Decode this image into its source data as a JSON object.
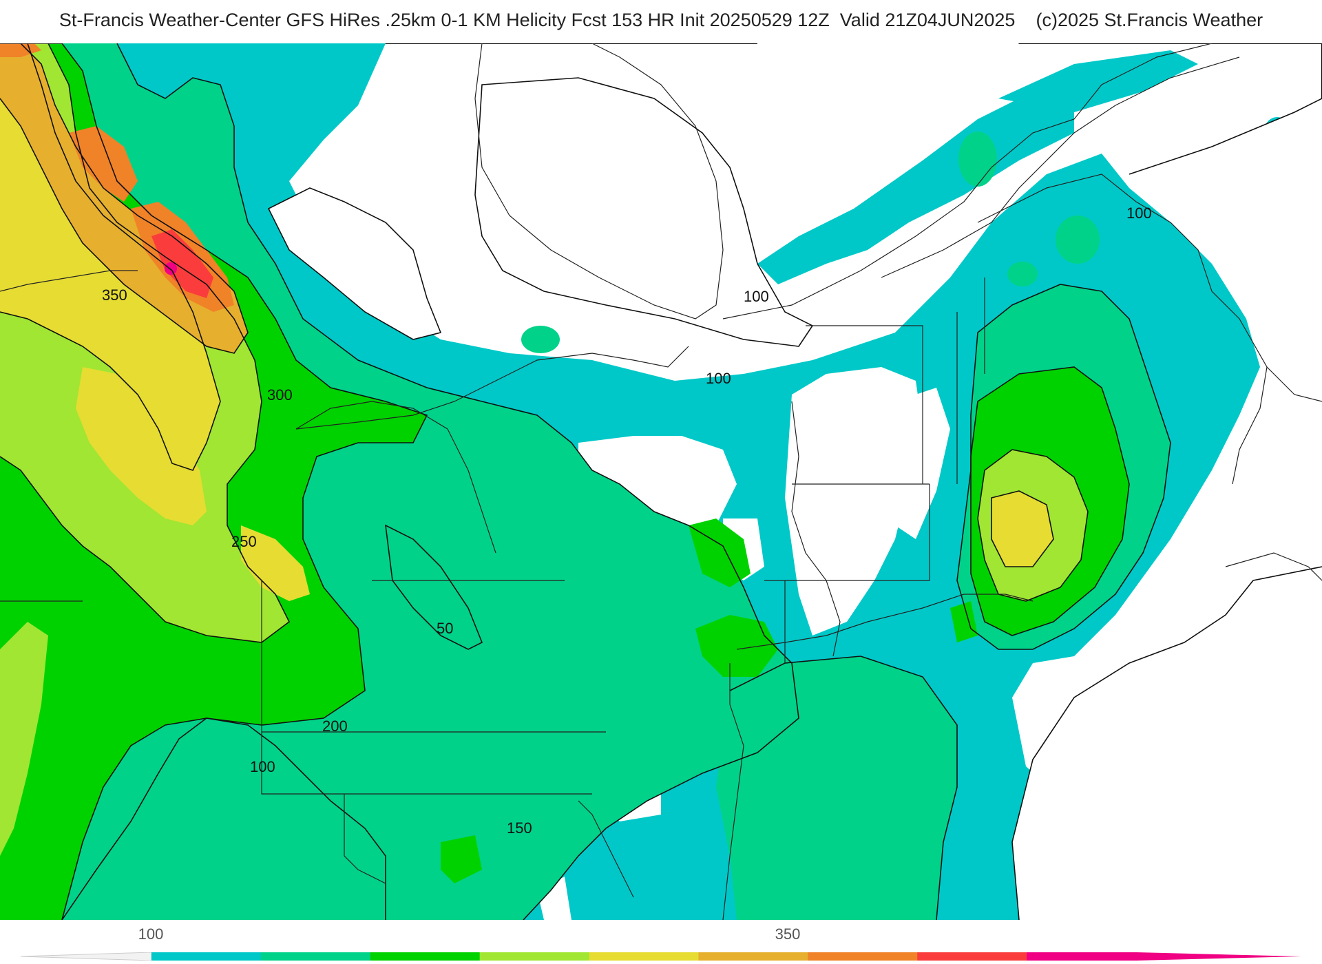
{
  "header": {
    "title": "St-Francis Weather-Center GFS HiRes .25km 0-1 KM Helicity Fcst 153 HR Init 20250529 12Z  Valid 21Z04JUN2025    (c)2025 St.Francis Weather"
  },
  "map": {
    "contour_labels": [
      "350",
      "300",
      "250",
      "200",
      "150",
      "100",
      "50",
      "100",
      "100",
      "100"
    ]
  },
  "colorbar": {
    "tick_labels": [
      "100",
      "350"
    ],
    "colors": [
      "#00c8c8",
      "#00d28a",
      "#00d200",
      "#a0e632",
      "#e6dc32",
      "#e6af2d",
      "#f08228",
      "#fa3c3c",
      "#f00082"
    ]
  }
}
